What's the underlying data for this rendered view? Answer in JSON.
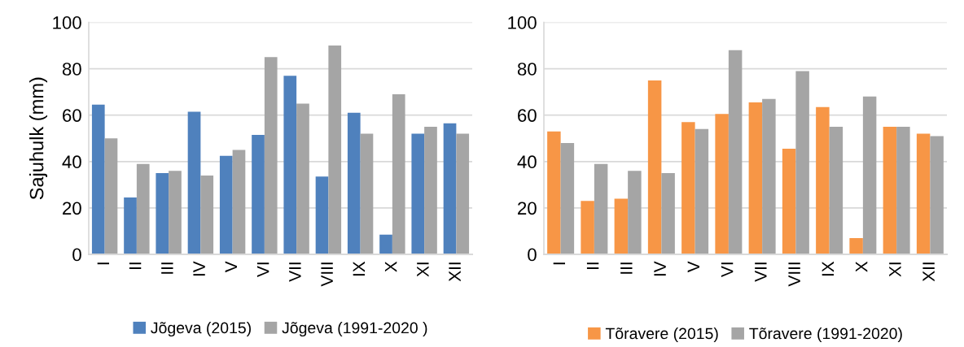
{
  "chart_data": [
    {
      "type": "bar",
      "ylabel": "Sajuhulk (mm)",
      "categories": [
        "I",
        "II",
        "III",
        "IV",
        "V",
        "VI",
        "VII",
        "VIII",
        "IX",
        "X",
        "XI",
        "XII"
      ],
      "series": [
        {
          "name": "Jõgeva (2015)",
          "color": "#4f81bd",
          "values": [
            64.5,
            24.5,
            35,
            61.5,
            42.5,
            51.5,
            77,
            33.5,
            61,
            8.5,
            52,
            56.5
          ]
        },
        {
          "name": "Jõgeva (1991-2020 )",
          "color": "#a5a5a5",
          "values": [
            50,
            39,
            36,
            34,
            45,
            85,
            65,
            90,
            52,
            69,
            55,
            52
          ]
        }
      ],
      "ylim": [
        0,
        100
      ],
      "yticks": [
        0,
        20,
        40,
        60,
        80,
        100
      ],
      "grid": "y",
      "legend": "bottom"
    },
    {
      "type": "bar",
      "categories": [
        "I",
        "II",
        "III",
        "IV",
        "V",
        "VI",
        "VII",
        "VIII",
        "IX",
        "X",
        "XI",
        "XII"
      ],
      "series": [
        {
          "name": "Tõravere (2015)",
          "color": "#f79646",
          "values": [
            53,
            23,
            24,
            75,
            57,
            60.5,
            65.5,
            45.5,
            63.5,
            7,
            55,
            52
          ]
        },
        {
          "name": "Tõravere (1991-2020)",
          "color": "#a5a5a5",
          "values": [
            48,
            39,
            36,
            35,
            54,
            88,
            67,
            79,
            55,
            68,
            55,
            51
          ]
        }
      ],
      "ylim": [
        0,
        100
      ],
      "yticks": [
        0,
        20,
        40,
        60,
        80,
        100
      ],
      "grid": "y",
      "legend": "bottom"
    }
  ]
}
